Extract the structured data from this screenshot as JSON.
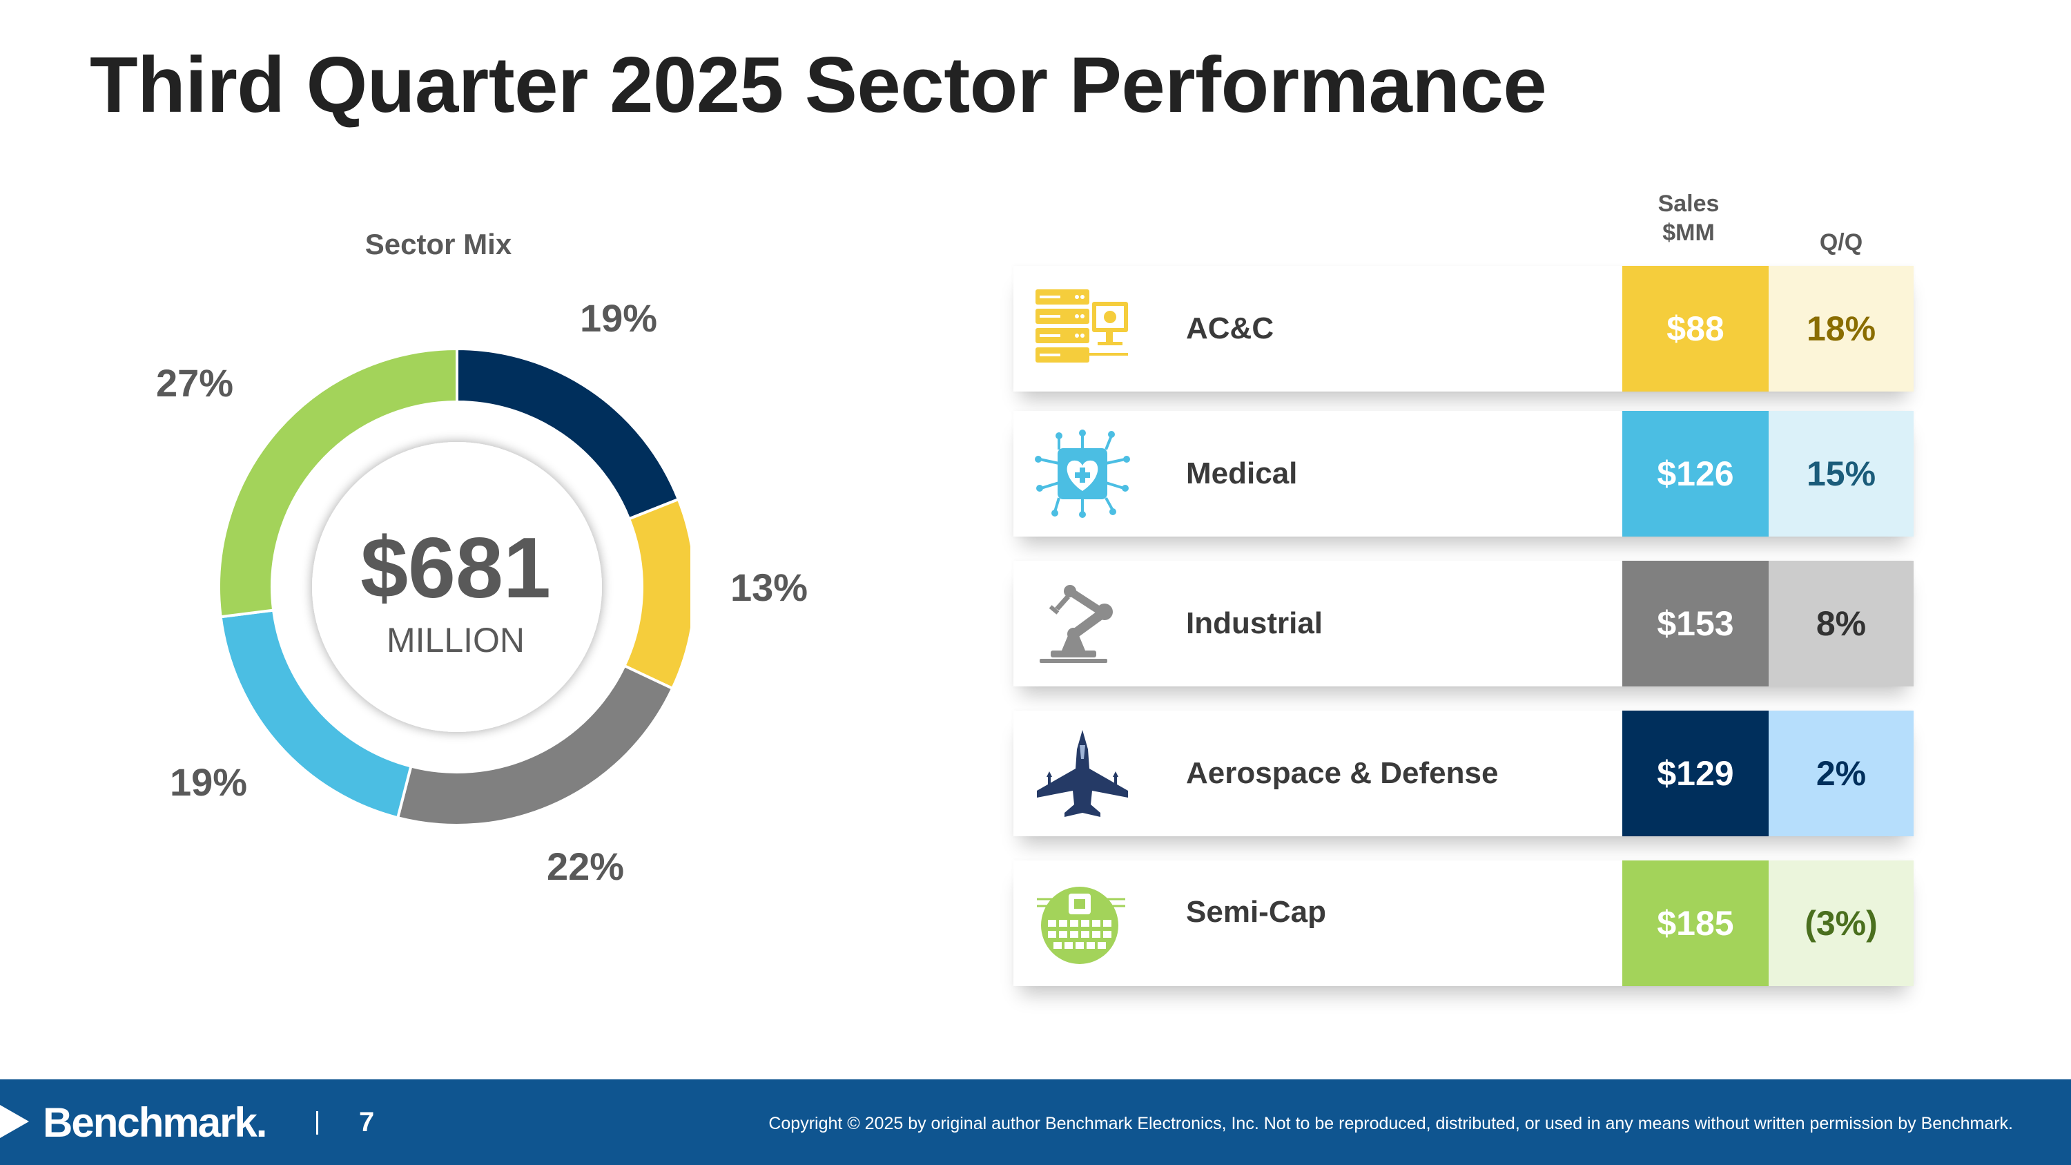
{
  "title": "Third Quarter 2025 Sector Performance",
  "chart_data": {
    "type": "pie",
    "title": "Sector Mix",
    "center_value": "$681",
    "center_unit": "MILLION",
    "slices": [
      {
        "name": "Aerospace & Defense",
        "value": 19,
        "label": "19%",
        "color": "#002f5c"
      },
      {
        "name": "AC&C",
        "value": 13,
        "label": "13%",
        "color": "#f5cd3c"
      },
      {
        "name": "Industrial",
        "value": 22,
        "label": "22%",
        "color": "#808080"
      },
      {
        "name": "Medical",
        "value": 19,
        "label": "19%",
        "color": "#4bbee3"
      },
      {
        "name": "Semi-Cap",
        "value": 27,
        "label": "27%",
        "color": "#a3d35a"
      }
    ]
  },
  "table": {
    "sales_header": "Sales $MM",
    "sales_header_line1": "Sales",
    "sales_header_line2": "$MM",
    "qq_header": "Q/Q",
    "rows": [
      {
        "name": "AC&C",
        "sales": "$88",
        "qq": "18%",
        "icon": "server-monitor-icon",
        "color": "#f5cd3c",
        "qq_bg": "#fcf5d8",
        "qq_color": "#8a6d00",
        "sales_color": "#ffffff"
      },
      {
        "name": "Medical",
        "sales": "$126",
        "qq": "15%",
        "icon": "medical-heart-circuit-icon",
        "color": "#4bbee3",
        "qq_bg": "#dbf1f9",
        "qq_color": "#1b5c7a",
        "sales_color": "#ffffff"
      },
      {
        "name": "Industrial",
        "sales": "$153",
        "qq": "8%",
        "icon": "robot-arm-icon",
        "color": "#808080",
        "qq_bg": "#cccccc",
        "qq_color": "#333333",
        "sales_color": "#ffffff"
      },
      {
        "name": "Aerospace & Defense",
        "sales": "$129",
        "qq": "2%",
        "icon": "fighter-jet-icon",
        "color": "#002f5c",
        "qq_bg": "#b6defc",
        "qq_color": "#002f5c",
        "sales_color": "#ffffff"
      },
      {
        "name": "Semi-Cap",
        "sales": "$185",
        "qq": "(3%)",
        "icon": "semiconductor-wafer-icon",
        "color": "#a3d35a",
        "qq_bg": "#ebf5dc",
        "qq_color": "#4a6f1e",
        "sales_color": "#ffffff"
      }
    ]
  },
  "footer": {
    "brand": "Benchmark.",
    "page_number": "7",
    "copyright": "Copyright © 2025 by original author Benchmark Electronics, Inc. Not to be reproduced, distributed, or used in any means without written permission by Benchmark."
  }
}
